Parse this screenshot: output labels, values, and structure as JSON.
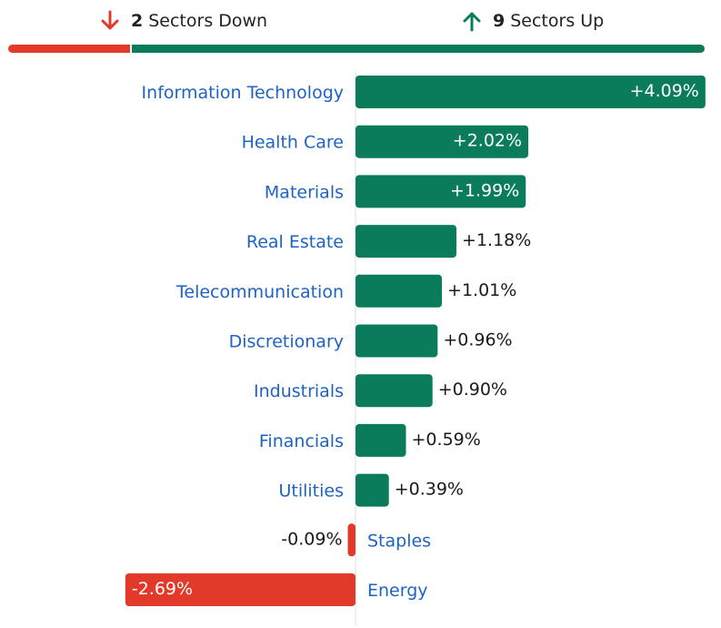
{
  "summary": {
    "down_count": "2",
    "down_text": "Sectors Down",
    "up_count": "9",
    "up_text": "Sectors Up",
    "down_color": "#e3392a",
    "up_color": "#0a7c5c",
    "down_icon": "arrow-down-icon",
    "up_icon": "arrow-up-icon"
  },
  "chart_data": {
    "type": "bar",
    "orientation": "horizontal",
    "categories": [
      "Information Technology",
      "Health Care",
      "Materials",
      "Real Estate",
      "Telecommunication",
      "Discretionary",
      "Industrials",
      "Financials",
      "Utilities",
      "Staples",
      "Energy"
    ],
    "values": [
      4.09,
      2.02,
      1.99,
      1.18,
      1.01,
      0.96,
      0.9,
      0.59,
      0.39,
      -0.09,
      -2.69
    ],
    "value_labels": [
      "+4.09%",
      "+2.02%",
      "+1.99%",
      "+1.18%",
      "+1.01%",
      "+0.96%",
      "+0.90%",
      "+0.59%",
      "+0.39%",
      "-0.09%",
      "-2.69%"
    ],
    "positive_color": "#0a7c5c",
    "negative_color": "#e3392a",
    "label_color": "#1e63c4",
    "xlim": [
      -2.69,
      4.09
    ],
    "grid": false
  }
}
